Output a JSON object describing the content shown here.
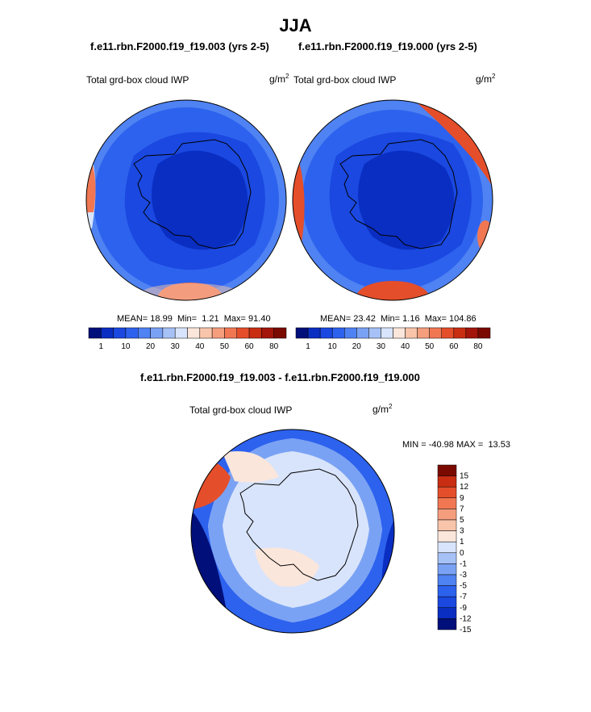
{
  "chart_data": {
    "type": "contour-map",
    "title": "JJA",
    "colors": {
      "abs_scale": [
        "#000f7a",
        "#0a2ec2",
        "#1a48e0",
        "#2d62ee",
        "#4f82f2",
        "#7aa2f4",
        "#a6c1f6",
        "#d8e4fb",
        "#fbe6db",
        "#f8c4aa",
        "#f59e7e",
        "#f17753",
        "#e54e2a",
        "#c92d12",
        "#a3150a",
        "#7a0a00"
      ],
      "diff_scale": [
        "#000f7a",
        "#0a2ec2",
        "#1a48e0",
        "#2d62ee",
        "#4f82f2",
        "#7aa2f4",
        "#a6c1f6",
        "#d8e4fb",
        "#fbe6db",
        "#f8c4aa",
        "#f59e7e",
        "#f17753",
        "#e54e2a",
        "#c92d12",
        "#7a0a00"
      ]
    },
    "panels": [
      {
        "subtitle": "f.e11.rbn.F2000.f19_f19.003 (yrs 2-5)",
        "field": "Total grd-box cloud IWP",
        "units": "g/m",
        "units_exp": "2",
        "stats": {
          "mean_label": "MEAN=",
          "mean": "18.99",
          "min_label": "Min=",
          "min": "1.21",
          "max_label": "Max=",
          "max": "91.40"
        },
        "colorbar_ticks": [
          "1",
          "10",
          "20",
          "30",
          "40",
          "50",
          "60",
          "80"
        ]
      },
      {
        "subtitle": "f.e11.rbn.F2000.f19_f19.000 (yrs 2-5)",
        "field": "Total grd-box cloud IWP",
        "units": "g/m",
        "units_exp": "2",
        "stats": {
          "mean_label": "MEAN=",
          "mean": "23.42",
          "min_label": "Min=",
          "min": "1.16",
          "max_label": "Max=",
          "max": "104.86"
        },
        "colorbar_ticks": [
          "1",
          "10",
          "20",
          "30",
          "40",
          "50",
          "60",
          "80"
        ]
      },
      {
        "subtitle": "f.e11.rbn.F2000.f19_f19.003 - f.e11.rbn.F2000.f19_f19.000",
        "field": "Total grd-box cloud IWP",
        "units": "g/m",
        "units_exp": "2",
        "stats": {
          "min_label": "MIN =",
          "min": "-40.98",
          "max_label": "MAX =",
          "max": "13.53"
        },
        "colorbar_ticks": [
          "15",
          "12",
          "9",
          "7",
          "5",
          "3",
          "1",
          "0",
          "-1",
          "-3",
          "-5",
          "-7",
          "-9",
          "-12",
          "-15"
        ]
      }
    ]
  }
}
